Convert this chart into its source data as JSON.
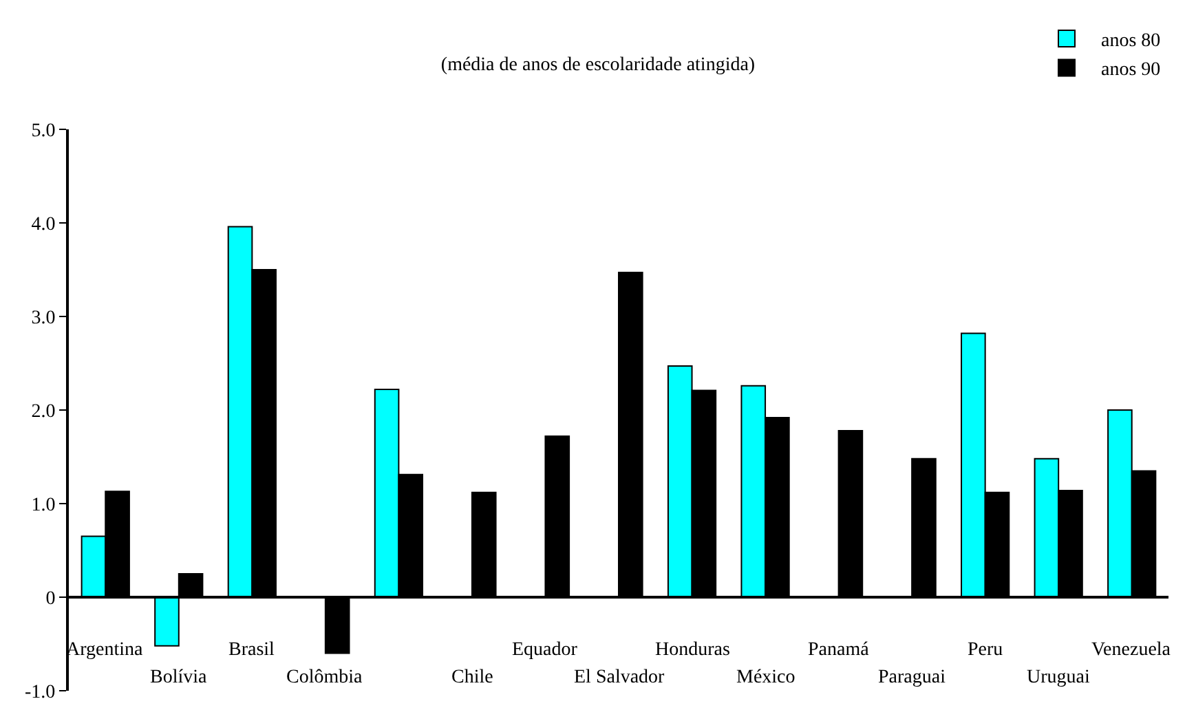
{
  "chart_data": {
    "type": "bar",
    "title": "(média de anos de escolaridade atingida)",
    "categories": [
      "Argentina",
      "Bolívia",
      "Brasil",
      "Colômbia",
      null,
      "Chile",
      "Equador",
      "El Salvador",
      "Honduras",
      "México",
      "Panamá",
      "Paraguai",
      "Peru",
      "Uruguai",
      "Venezuela"
    ],
    "series": [
      {
        "name": "anos 80",
        "color": "#00ffff",
        "values": [
          0.65,
          -0.52,
          3.96,
          null,
          2.22,
          null,
          null,
          null,
          2.47,
          2.26,
          null,
          null,
          2.82,
          1.48,
          2.0
        ]
      },
      {
        "name": "anos 90",
        "color": "#000000",
        "values": [
          1.13,
          0.25,
          3.5,
          -0.6,
          1.31,
          1.12,
          1.72,
          3.47,
          2.21,
          1.92,
          1.78,
          1.48,
          1.12,
          1.14,
          1.35
        ]
      }
    ],
    "ylim": [
      -1,
      5
    ],
    "yticks": [
      {
        "value": 5,
        "label": "5.0"
      },
      {
        "value": 4,
        "label": "4.0"
      },
      {
        "value": 3,
        "label": "3.0"
      },
      {
        "value": 2,
        "label": "2.0"
      },
      {
        "value": 1,
        "label": "1.0"
      },
      0,
      {
        "value": -1,
        "label": "-1.0"
      }
    ],
    "grid": false,
    "legend": "top right"
  }
}
